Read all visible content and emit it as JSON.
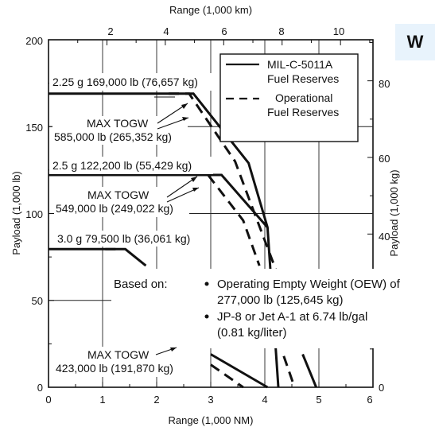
{
  "badge": "W",
  "chart_data": {
    "type": "line",
    "xlabel": "Range (1,000 NM)",
    "x2label": "Range (1,000 km)",
    "ylabel": "Payload (1,000 lb)",
    "y2label": "Payload (1,000 kg)",
    "xlim": [
      0,
      6
    ],
    "ylim": [
      0,
      200
    ],
    "grid": true,
    "legend_position": "top-right",
    "x_ticks": [
      "0",
      "1",
      "2",
      "3",
      "4",
      "5",
      "6"
    ],
    "y_ticks": [
      "0",
      "50",
      "100",
      "150",
      "200"
    ],
    "x2_ticks": [
      "2",
      "4",
      "6",
      "8",
      "10"
    ],
    "y2_ticks": [
      "0",
      "20",
      "40",
      "60",
      "80"
    ],
    "series": [
      {
        "name": "MIL-C-5011A Fuel Reserves",
        "style": "solid",
        "groups": [
          [
            [
              0,
              169
            ],
            [
              2.68,
              169
            ],
            [
              3.7,
              129
            ],
            [
              4.05,
              92
            ],
            [
              4.25,
              0
            ]
          ],
          [
            [
              0,
              122.2
            ],
            [
              3.2,
              122.2
            ],
            [
              4.05,
              92
            ]
          ],
          [
            [
              0,
              79.5
            ],
            [
              1.42,
              79.5
            ],
            [
              1.8,
              70
            ]
          ],
          [
            [
              3.0,
              19
            ],
            [
              4.05,
              0
            ]
          ],
          [
            [
              4.7,
              19
            ],
            [
              4.95,
              0
            ]
          ]
        ]
      },
      {
        "name": "Operational Fuel Reserves",
        "style": "dashed",
        "groups": [
          [
            [
              2.22,
              169
            ],
            [
              2.6,
              169
            ],
            [
              3.45,
              130
            ],
            [
              3.75,
              105
            ],
            [
              4.2,
              68
            ]
          ],
          [
            [
              2.95,
              122.2
            ],
            [
              3.6,
              96
            ],
            [
              3.9,
              70
            ]
          ],
          [
            [
              1.05,
              79.5
            ],
            [
              1.35,
              79.5
            ]
          ],
          [
            [
              3.0,
              13
            ],
            [
              3.6,
              0
            ]
          ],
          [
            [
              4.35,
              18
            ],
            [
              4.55,
              0
            ]
          ]
        ]
      }
    ],
    "annotations": {
      "g225": "2.25 g 169,000 lb (76,657 kg)",
      "max_togw_1": "MAX TOGW",
      "togw_1": "585,000 lb (265,352 kg)",
      "g25": "2.5 g 122,200 lb (55,429 kg)",
      "max_togw_2": "MAX TOGW",
      "togw_2": "549,000 lb (249,022 kg)",
      "g30": "3.0 g 79,500 lb (36,061 kg)",
      "max_togw_3": "MAX TOGW",
      "togw_3": "423,000 lb (191,870 kg)"
    },
    "note": {
      "label": "Based on:",
      "b1a": "Operating Empty Weight (OEW) of",
      "b1b": "277,000 lb (125,645 kg)",
      "b2a": "JP-8 or Jet A-1 at 6.74 lb/gal",
      "b2b": "(0.81 kg/liter)"
    }
  }
}
